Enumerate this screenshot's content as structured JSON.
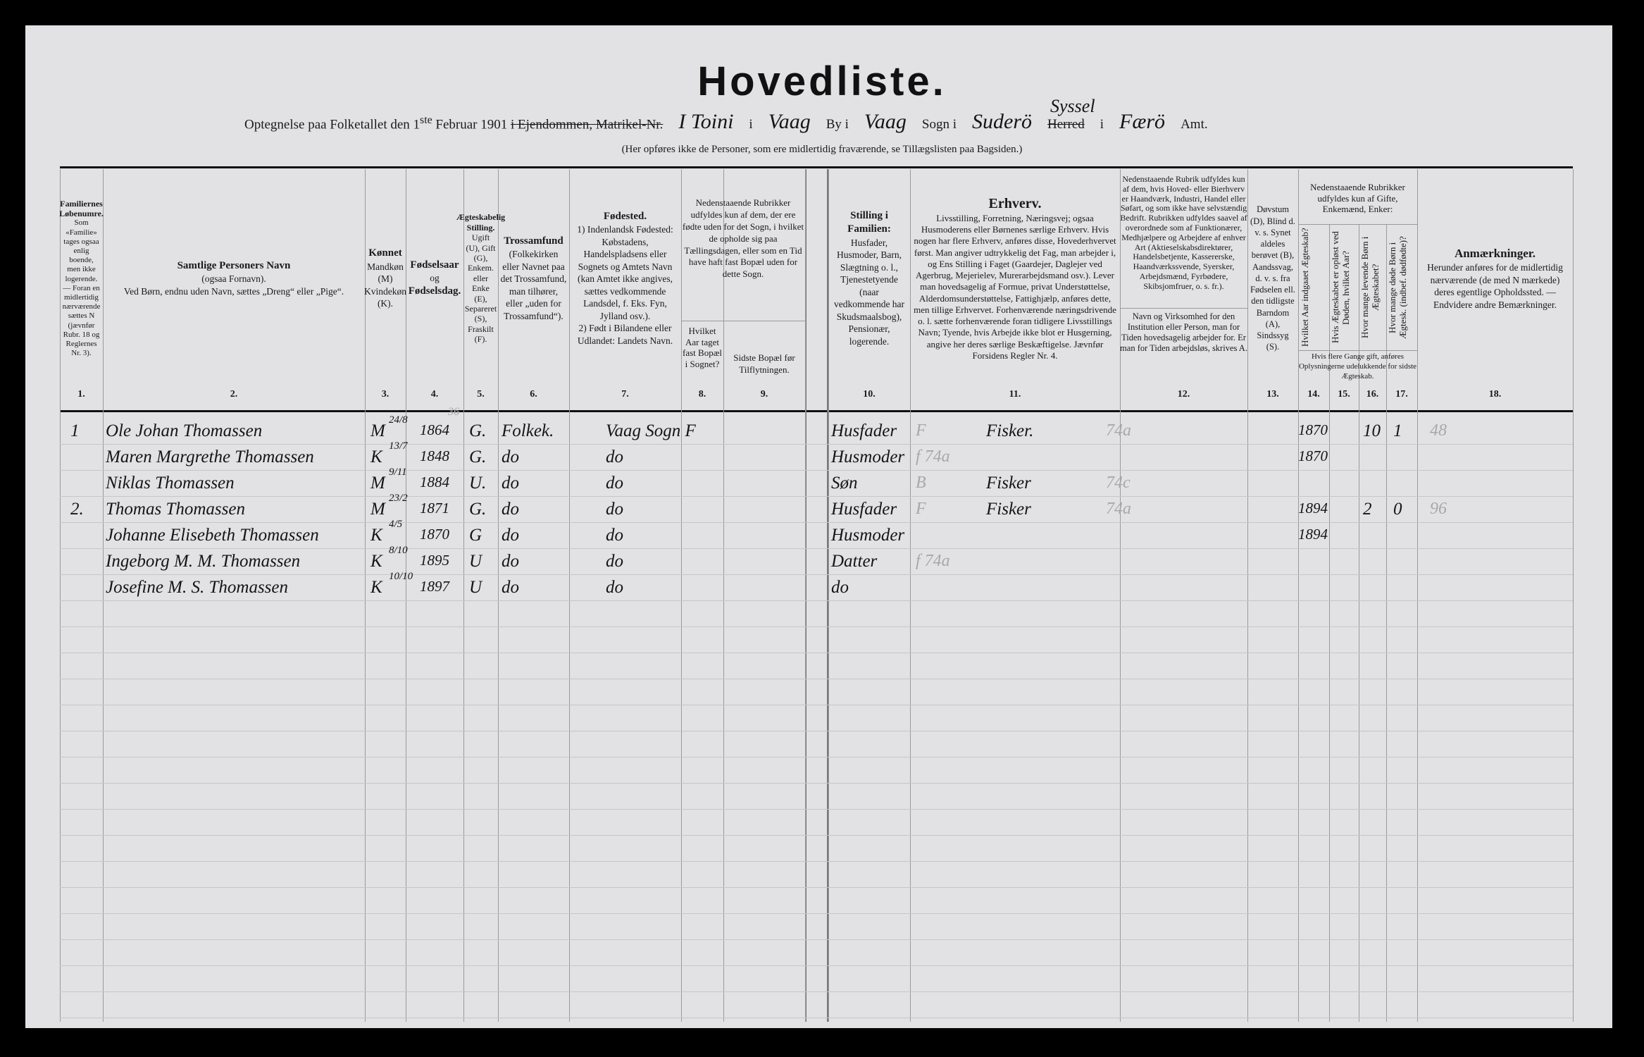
{
  "header": {
    "title": "Hovedliste.",
    "intro": "Optegnelse paa Folketallet den 1",
    "intro_sup": "ste",
    "intro_date": "Februar 1901",
    "struck_prefix": "i Ejendommen, Matrikel-Nr.",
    "property": "I Toini",
    "i1": "i",
    "town_hw": "Vaag",
    "by_label": "By i",
    "parish_hw": "Vaag",
    "sogn_label": "Sogn i",
    "district_hw": "Suderö",
    "district_hw_above": "Syssel",
    "herred_struck": "Herred",
    "i2": "i",
    "county_hw": "Færö",
    "amt_label": "Amt.",
    "note": "(Her opføres ikke de Personer, som ere midlertidig fraværende, se Tillægslisten paa Bagsiden.)"
  },
  "columns": [
    {
      "num": "1.",
      "title": "Familiernes Løbenumre.",
      "text": "Som «Familie» tages ogsaa enlig boende, men ikke logerende. — Foran en midlertidig nærværende sættes N (jævnfør Rubr. 18 og Reglernes Nr. 3)."
    },
    {
      "num": "2.",
      "title": "Samtlige Personers Navn",
      "text": "(ogsaa Fornavn).",
      "text2": "Ved Børn, endnu uden Navn, sættes „Dreng“ eller „Pige“."
    },
    {
      "num": "3.",
      "title": "Kønnet",
      "text": "Mandkøn (M) Kvindekøn (K)."
    },
    {
      "num": "4.",
      "title": "Fødselsaar",
      "text": "og",
      "text2": "Fødselsdag."
    },
    {
      "num": "5.",
      "title": "Ægteskabelig Stilling.",
      "text": "Ugift (U), Gift (G), Enkem. eller Enke (E), Separeret (S), Fraskilt (F)."
    },
    {
      "num": "6.",
      "title": "Trossamfund",
      "text": "(Folkekirken eller Navnet paa det Trossamfund, man tilhører, eller „uden for Trossamfund“)."
    },
    {
      "num": "7.",
      "title": "Fødested.",
      "text": "1) Indenlandsk Fødested: Købstadens, Handelspladsens eller Sognets og Amtets Navn (kan Amtet ikke angives, sættes vedkommende Landsdel, f. Eks. Fyn, Jylland osv.).",
      "text2": "2) Født i Bilandene eller Udlandet: Landets Navn."
    },
    {
      "num": "8.",
      "title": "",
      "text": "Hvilket Aar taget fast Bopæl i Sognet?"
    },
    {
      "num": "9.",
      "title": "",
      "text": "Sidste Bopæl før Tilflytningen."
    },
    {
      "num": "10.",
      "title": "Stilling i Familien:",
      "text": "Husfader, Husmoder, Barn, Slægtning o. l., Tjenestetyende (naar vedkommende har Skudsmaalsbog), Pensionær, logerende."
    },
    {
      "num": "11.",
      "title": "Erhverv.",
      "text": "Livsstilling, Forretning, Næringsvej; ogsaa Husmoderens eller Børnenes særlige Erhverv. Hvis nogen har flere Erhverv, anføres disse, Hovederhvervet først. Man angiver udtrykkelig det Fag, man arbejder i, og Ens Stilling i Faget (Gaardejer, Daglejer ved Agerbrug, Mejerielev, Murerarbejdsmand osv.). Lever man hovedsagelig af Formue, privat Understøttelse, Alderdomsunderstøttelse, Fattighjælp, anføres dette, men tillige Erhvervet. Forhenværende næringsdrivende o. l. sætte forhenværende foran tidligere Livsstillings Navn; Tyende, hvis Arbejde ikke blot er Husgerning, angive her deres særlige Beskæftigelse. Jævnfør Forsidens Regler Nr. 4."
    },
    {
      "num": "12.",
      "title": "",
      "text": "Nedenstaaende Rubrik udfyldes kun af dem, hvis Hoved- eller Bierhverv er Haandværk, Industri, Handel eller Søfart, og som ikke have selvstændig Bedrift. Rubrikken udfyldes saavel af overordnede som af Funktionærer, Medhjælpere og Arbejdere af enhver Art (Aktieselskabsdirektører, Handelsbetjente, Kassererske, Haandværkssvende, Syersker, Arbejdsmænd, Fyrbødere, Skibsjomfruer, o. s. fr.).",
      "text2": "Navn og Virksomhed for den Institution eller Person, man for Tiden hovedsagelig arbejder for. Er man for Tiden arbejdsløs, skrives A."
    },
    {
      "num": "13.",
      "title": "",
      "text": "Døvstum (D), Blind d. v. s. Synet aldeles berøvet (B), Aandssvag, d. v. s. fra Fødselen ell. den tidligste Barndom (A), Sindssyg (S)."
    },
    {
      "num": "14.",
      "title": "",
      "text": "Hvilket Aar indgaaet Ægteskab?"
    },
    {
      "num": "15.",
      "title": "",
      "text": "Hvis Ægteskabet er opløst ved Døden, hvilket Aar?"
    },
    {
      "num": "16.",
      "title": "",
      "text": "Hvor mange levende Børn i Ægteskabet?"
    },
    {
      "num": "17.",
      "title": "",
      "text": "Hvor mange døde Børn i Ægtesk. (indbef. dødfødte)?"
    },
    {
      "num": "18.",
      "title": "Anmærkninger.",
      "text": "Herunder anføres for de midlertidig nærværende (de med N mærkede) deres egentlige Opholdssted. — Endvidere andre Bemærkninger."
    }
  ],
  "group_headers": {
    "col8_9": "Nedenstaaende Rubrikker udfyldes kun af dem, der ere fødte uden for det Sogn, i hvilket de opholde sig paa Tællingsdagen, eller som en Tid have haft fast Bopæl uden for dette Sogn.",
    "col14_17": "Nedenstaaende Rubrikker udfyldes kun af Gifte, Enkemænd, Enker:",
    "col14_17_note": "Hvis flere Gange gift, anføres Oplysningerne udelukkende for sidste Ægteskab."
  },
  "rows": [
    {
      "family": "1",
      "name": "Ole Johan Thomassen",
      "sex": "M",
      "birth_day": "24/8",
      "birth_year": "1864",
      "pencil_age": "36",
      "marital": "G.",
      "faith": "Folkek.",
      "birthplace": "Vaag Sogn F",
      "position": "Husfader",
      "pencil_11": "F",
      "occupation": "Fisker.",
      "pencil_12": "74a",
      "married_year": "1870",
      "children_living": "10",
      "children_dead": "1",
      "pencil_18": "48"
    },
    {
      "family": "",
      "name": "Maren Margrethe Thomassen",
      "sex": "K",
      "birth_day": "13/7",
      "birth_year": "1848",
      "marital": "G.",
      "faith": "do",
      "birthplace": "do",
      "position": "Husmoder",
      "pencil_11": "f 74a",
      "occupation": "",
      "married_year": "1870"
    },
    {
      "family": "",
      "name": "Niklas Thomassen",
      "sex": "M",
      "birth_day": "9/11",
      "birth_year": "1884",
      "marital": "U.",
      "faith": "do",
      "birthplace": "do",
      "position": "Søn",
      "pencil_11": "B",
      "occupation": "Fisker",
      "pencil_12": "74c"
    },
    {
      "family": "2.",
      "name": "Thomas Thomassen",
      "sex": "M",
      "birth_day": "23/2",
      "birth_year": "1871",
      "marital": "G.",
      "faith": "do",
      "birthplace": "do",
      "position": "Husfader",
      "pencil_11": "F",
      "occupation": "Fisker",
      "pencil_12": "74a",
      "married_year": "1894",
      "children_living": "2",
      "children_dead": "0",
      "pencil_18": "96"
    },
    {
      "family": "",
      "name": "Johanne Elisebeth Thomassen",
      "sex": "K",
      "birth_day": "4/5",
      "birth_year": "1870",
      "marital": "G",
      "faith": "do",
      "birthplace": "do",
      "position": "Husmoder",
      "married_year": "1894"
    },
    {
      "family": "",
      "name": "Ingeborg M. M. Thomassen",
      "sex": "K",
      "birth_day": "8/10",
      "birth_year": "1895",
      "marital": "U",
      "faith": "do",
      "birthplace": "do",
      "position": "Datter",
      "pencil_11": "f 74a"
    },
    {
      "family": "",
      "name": "Josefine M. S. Thomassen",
      "sex": "K",
      "birth_day": "10/10",
      "birth_year": "1897",
      "marital": "U",
      "faith": "do",
      "birthplace": "do",
      "position": "do"
    }
  ]
}
